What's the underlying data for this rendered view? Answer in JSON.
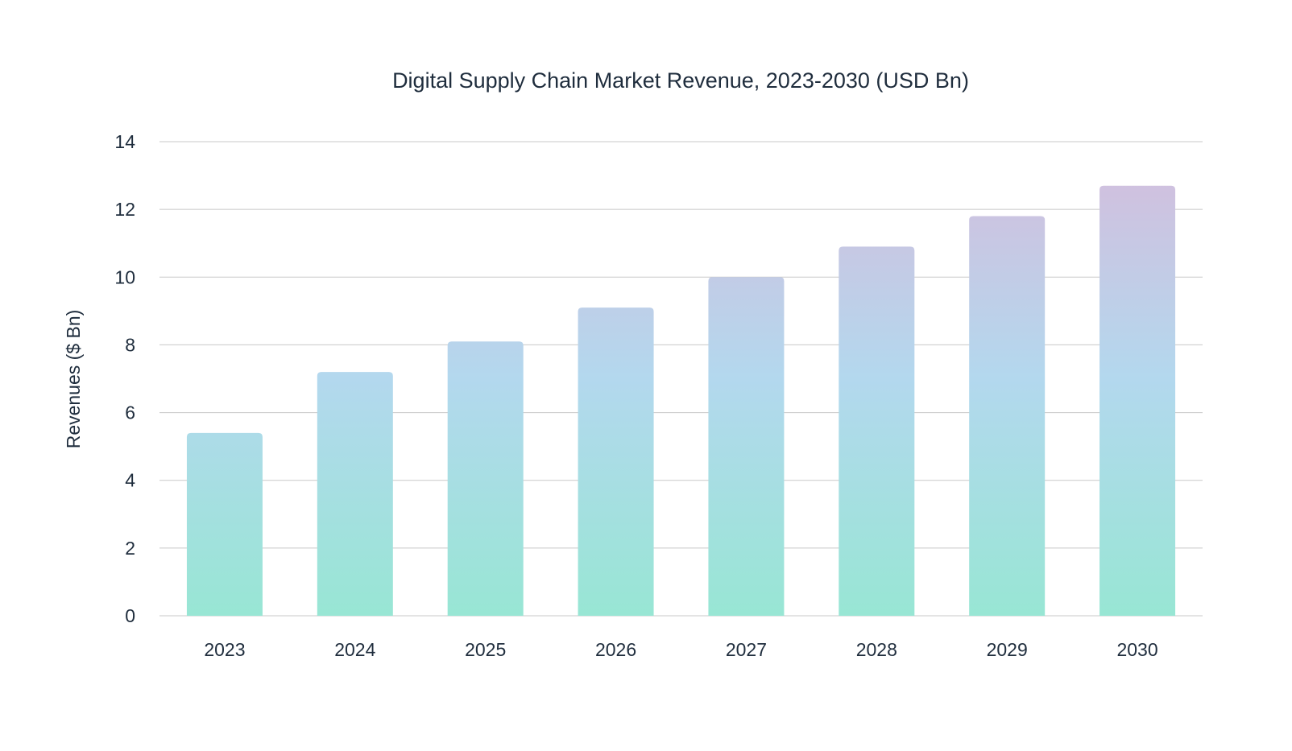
{
  "chart_data": {
    "type": "bar",
    "title": "Digital Supply Chain Market Revenue, 2023-2030 (USD Bn)",
    "xlabel": "",
    "ylabel": "Revenues ($ Bn)",
    "categories": [
      "2023",
      "2024",
      "2025",
      "2026",
      "2027",
      "2028",
      "2029",
      "2030"
    ],
    "values": [
      5.4,
      7.2,
      8.1,
      9.1,
      10.0,
      10.9,
      11.8,
      12.7
    ],
    "ylim": [
      0,
      14
    ],
    "yticks": [
      "0",
      "2",
      "4",
      "6",
      "8",
      "10",
      "12",
      "14"
    ],
    "grid": true,
    "legend": "none",
    "colors": {
      "bottom": "#98e6d4",
      "middle": "#b3d8ee",
      "top": "#d6bcdc",
      "grid": "#c8c8c8",
      "text": "#1f2d3d"
    }
  }
}
